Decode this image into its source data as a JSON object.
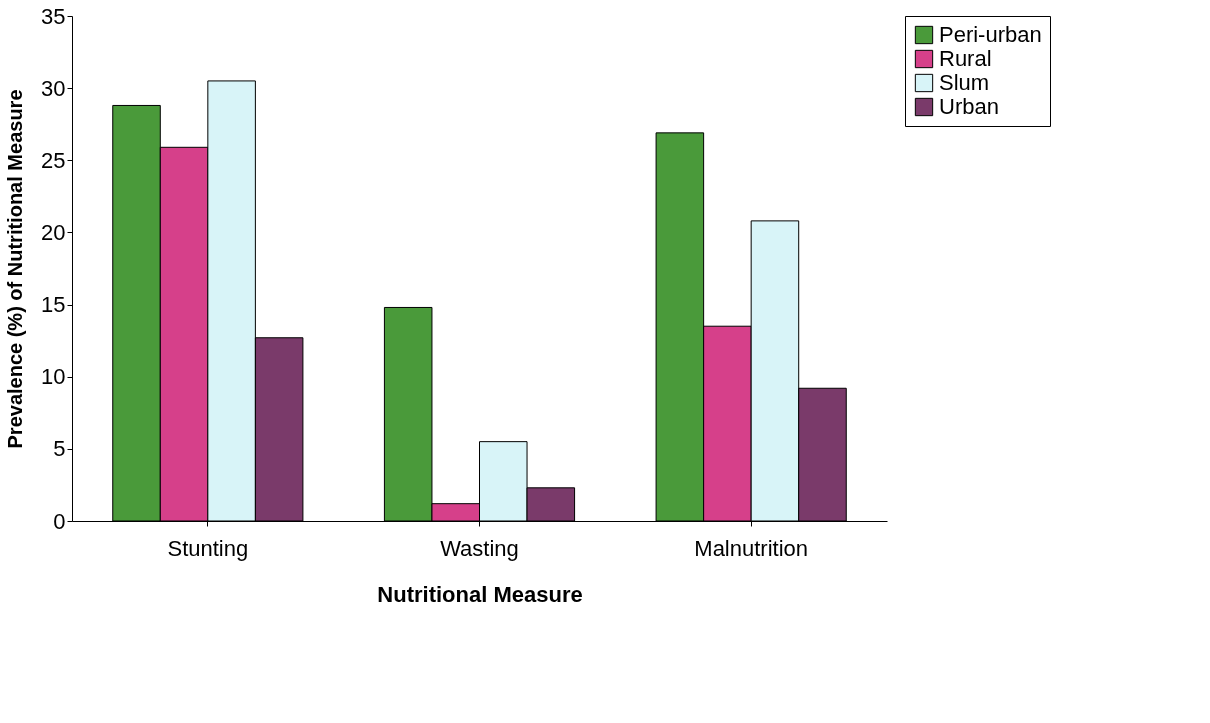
{
  "chart_data": {
    "type": "bar",
    "xlabel": "Nutritional Measure",
    "ylabel": "Prevalence (%) of Nutritional Measure",
    "categories": [
      "Stunting",
      "Wasting",
      "Malnutrition"
    ],
    "series": [
      {
        "name": "Peri-urban",
        "color": "#4a9a3a",
        "values": [
          28.8,
          14.8,
          26.9
        ]
      },
      {
        "name": "Rural",
        "color": "#d6408a",
        "values": [
          25.9,
          1.2,
          13.5
        ]
      },
      {
        "name": "Slum",
        "color": "#d8f4f8",
        "values": [
          30.5,
          5.5,
          20.8
        ]
      },
      {
        "name": "Urban",
        "color": "#7a3a6a",
        "values": [
          12.7,
          2.3,
          9.2
        ]
      }
    ],
    "ylim": [
      0,
      35
    ],
    "yticks": [
      0,
      5,
      10,
      15,
      20,
      25,
      30,
      35
    ],
    "grid": false,
    "legend": "right"
  }
}
